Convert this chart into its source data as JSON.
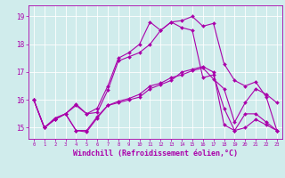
{
  "x": [
    0,
    1,
    2,
    3,
    4,
    5,
    6,
    7,
    8,
    9,
    10,
    11,
    12,
    13,
    14,
    15,
    16,
    17,
    18,
    19,
    20,
    21,
    22,
    23
  ],
  "lines": [
    [
      16.0,
      15.0,
      15.3,
      15.5,
      15.8,
      15.5,
      15.7,
      16.5,
      17.5,
      17.7,
      18.0,
      18.8,
      18.5,
      18.8,
      18.85,
      19.0,
      18.65,
      18.75,
      17.3,
      16.7,
      16.5,
      16.65,
      16.1,
      14.9
    ],
    [
      16.0,
      15.0,
      15.35,
      15.5,
      15.85,
      15.5,
      15.55,
      16.35,
      17.4,
      17.55,
      17.7,
      18.0,
      18.5,
      18.8,
      18.6,
      18.5,
      16.8,
      16.9,
      15.7,
      14.9,
      15.5,
      15.5,
      15.2,
      14.9
    ],
    [
      16.0,
      15.0,
      15.3,
      15.5,
      14.9,
      14.9,
      15.4,
      15.8,
      15.9,
      16.0,
      16.1,
      16.4,
      16.55,
      16.7,
      17.0,
      17.1,
      17.2,
      17.0,
      15.1,
      14.9,
      15.0,
      15.3,
      15.1,
      14.9
    ],
    [
      16.0,
      15.0,
      15.3,
      15.5,
      14.9,
      14.85,
      15.35,
      15.8,
      15.95,
      16.05,
      16.2,
      16.5,
      16.6,
      16.8,
      16.9,
      17.05,
      17.15,
      16.75,
      16.4,
      15.2,
      15.9,
      16.4,
      16.2,
      15.9
    ]
  ],
  "line_color": "#aa00aa",
  "marker": "D",
  "markersize": 2.0,
  "linewidth": 0.8,
  "xlabel": "Windchill (Refroidissement éolien,°C)",
  "xlabel_fontsize": 6,
  "ytick_labels": [
    "15",
    "16",
    "17",
    "18",
    "19"
  ],
  "ytick_vals": [
    15,
    16,
    17,
    18,
    19
  ],
  "xlim": [
    -0.5,
    23.5
  ],
  "ylim": [
    14.6,
    19.4
  ],
  "bg_color": "#d0ecec",
  "grid_color": "#ffffff",
  "tick_color": "#aa00aa",
  "spine_color": "#aa00aa",
  "xtick_fontsize": 4.0,
  "ytick_fontsize": 5.5
}
